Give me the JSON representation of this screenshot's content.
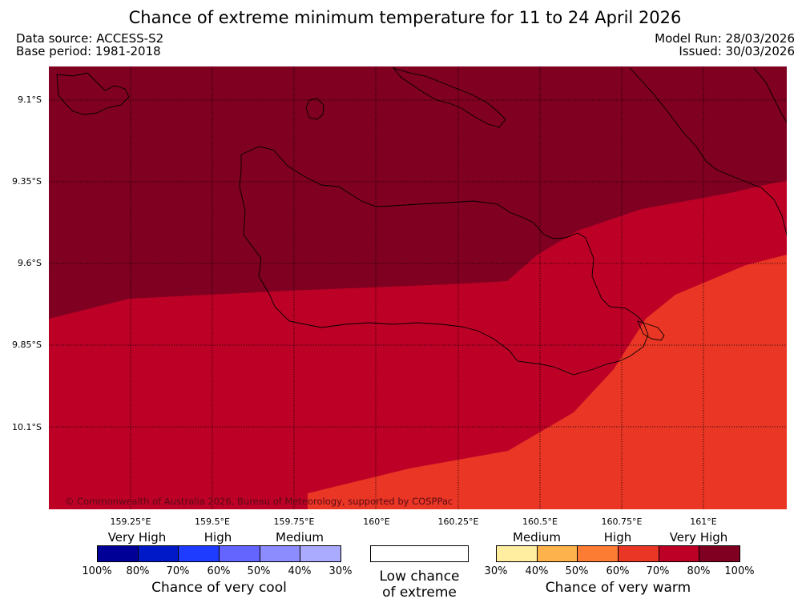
{
  "title": "Chance of extreme minimum temperature for 11 to 24 April 2026",
  "data_source": "Data source: ACCESS-S2",
  "base_period": "Base period: 1981-2018",
  "model_run": "Model Run: 28/03/2026",
  "issued": "Issued: 30/03/2026",
  "copyright": "© Commonwealth of Australia 2026, Bureau of Meteorology, supported by COSPPac",
  "map": {
    "lat_labels": [
      "9.1°S",
      "9.35°S",
      "9.6°S",
      "9.85°S",
      "10.1°S"
    ],
    "lon_labels": [
      "159.25°E",
      "159.5°E",
      "159.75°E",
      "160°E",
      "160.25°E",
      "160.5°E",
      "160.75°E",
      "161°E"
    ],
    "zone_colors": {
      "very_high_warm": "#7f0020",
      "high_warm": "#bd0026",
      "medium_high_warm": "#ea3625"
    }
  },
  "legend": {
    "cool": {
      "categories": [
        "Very High",
        "High",
        "Medium"
      ],
      "colors": [
        "#000096",
        "#0019c8",
        "#1e3cff",
        "#6464ff",
        "#8c8cff",
        "#aaaaff"
      ],
      "percent_labels": [
        "100%",
        "80%",
        "70%",
        "60%",
        "50%",
        "40%",
        "30%"
      ],
      "caption": "Chance of very cool"
    },
    "neutral": {
      "color": "#ffffff",
      "caption_line1": "Low chance",
      "caption_line2": "of extreme"
    },
    "warm": {
      "categories": [
        "Medium",
        "High",
        "Very High"
      ],
      "colors": [
        "#ffeda0",
        "#feb24c",
        "#fd7c33",
        "#ea3625",
        "#bd0026",
        "#7f0020"
      ],
      "percent_labels": [
        "30%",
        "40%",
        "50%",
        "60%",
        "70%",
        "80%",
        "100%"
      ],
      "caption": "Chance of very warm"
    }
  }
}
